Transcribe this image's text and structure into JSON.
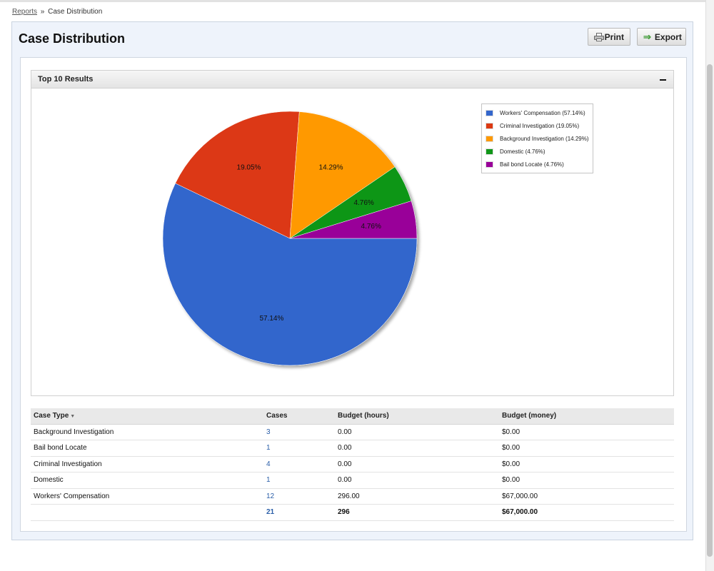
{
  "breadcrumb": {
    "parent": "Reports",
    "separator": "»",
    "current": "Case Distribution"
  },
  "page": {
    "title": "Case Distribution"
  },
  "toolbar": {
    "print_label": "Print",
    "export_label": "Export"
  },
  "results_panel": {
    "title": "Top 10 Results"
  },
  "chart_data": {
    "type": "pie",
    "title": "",
    "slices": [
      {
        "label": "Workers' Compensation",
        "value": 57.14,
        "display": "57.14%",
        "legend": "Workers' Compensation (57.14%)",
        "color": "#3366cc"
      },
      {
        "label": "Criminal Investigation",
        "value": 19.05,
        "display": "19.05%",
        "legend": "Criminal Investigation (19.05%)",
        "color": "#dc3912"
      },
      {
        "label": "Background Investigation",
        "value": 14.29,
        "display": "14.29%",
        "legend": "Background Investigation (14.29%)",
        "color": "#ff9900"
      },
      {
        "label": "Domestic",
        "value": 4.76,
        "display": "4.76%",
        "legend": "Domestic (4.76%)",
        "color": "#109618"
      },
      {
        "label": "Bail bond Locate",
        "value": 4.76,
        "display": "4.76%",
        "legend": "Bail bond Locate (4.76%)",
        "color": "#990099"
      }
    ],
    "legend_position": "top-right"
  },
  "table": {
    "headers": {
      "case_type": "Case Type",
      "cases": "Cases",
      "budget_hours": "Budget (hours)",
      "budget_money": "Budget (money)"
    },
    "rows": [
      {
        "case_type": "Background Investigation",
        "cases": "3",
        "budget_hours": "0.00",
        "budget_money": "$0.00"
      },
      {
        "case_type": "Bail bond Locate",
        "cases": "1",
        "budget_hours": "0.00",
        "budget_money": "$0.00"
      },
      {
        "case_type": "Criminal Investigation",
        "cases": "4",
        "budget_hours": "0.00",
        "budget_money": "$0.00"
      },
      {
        "case_type": "Domestic",
        "cases": "1",
        "budget_hours": "0.00",
        "budget_money": "$0.00"
      },
      {
        "case_type": "Workers' Compensation",
        "cases": "12",
        "budget_hours": "296.00",
        "budget_money": "$67,000.00"
      }
    ],
    "totals": {
      "cases": "21",
      "budget_hours": "296",
      "budget_money": "$67,000.00"
    }
  },
  "colors": {
    "link": "#2a5ea8",
    "panel_bg": "#eef3fb"
  }
}
